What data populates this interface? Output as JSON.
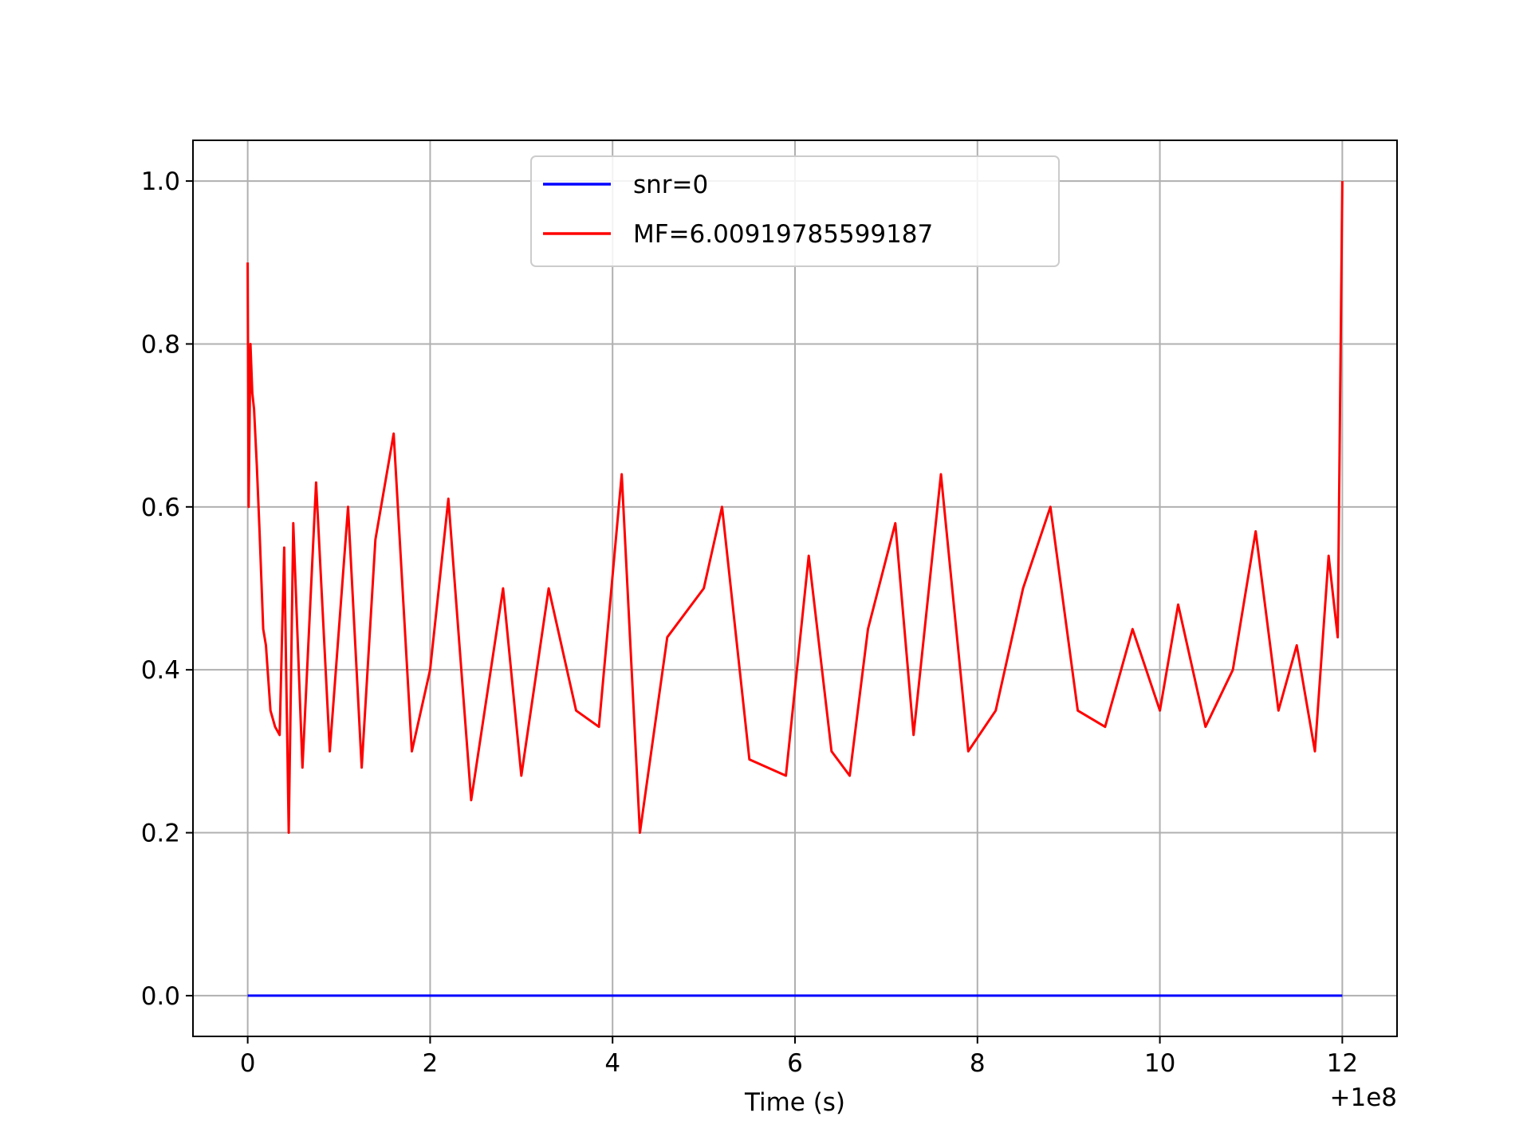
{
  "chart_data": {
    "type": "line",
    "title": "",
    "xlabel": "Time (s)",
    "ylabel": "",
    "x_offset_label": "+1e8",
    "xlim": [
      -0.6,
      12.6
    ],
    "ylim": [
      -0.05,
      1.05
    ],
    "xticks": [
      0,
      2,
      4,
      6,
      8,
      10,
      12
    ],
    "xtick_labels": [
      "0",
      "2",
      "4",
      "6",
      "8",
      "10",
      "12"
    ],
    "yticks": [
      0.0,
      0.2,
      0.4,
      0.6,
      0.8,
      1.0
    ],
    "ytick_labels": [
      "0.0",
      "0.2",
      "0.4",
      "0.6",
      "0.8",
      "1.0"
    ],
    "grid": true,
    "legend_position": "upper-center",
    "series": [
      {
        "name": "snr=0",
        "color": "#0000ff",
        "x": [
          0,
          12
        ],
        "y": [
          0,
          0
        ]
      },
      {
        "name": "MF=6.00919785599187",
        "color": "#ff0000",
        "x": [
          0,
          0.01,
          0.03,
          0.05,
          0.07,
          0.1,
          0.13,
          0.17,
          0.2,
          0.25,
          0.3,
          0.35,
          0.4,
          0.45,
          0.5,
          0.6,
          0.75,
          0.9,
          1.1,
          1.25,
          1.4,
          1.6,
          1.8,
          2.0,
          2.2,
          2.45,
          2.8,
          3.0,
          3.3,
          3.6,
          3.85,
          4.1,
          4.3,
          4.6,
          5.0,
          5.2,
          5.5,
          5.9,
          6.15,
          6.4,
          6.6,
          6.8,
          7.1,
          7.3,
          7.6,
          7.9,
          8.2,
          8.5,
          8.8,
          9.1,
          9.4,
          9.7,
          10.0,
          10.2,
          10.5,
          10.8,
          11.05,
          11.3,
          11.5,
          11.7,
          11.85,
          11.95,
          12.0
        ],
        "y": [
          0.9,
          0.6,
          0.8,
          0.74,
          0.72,
          0.65,
          0.57,
          0.45,
          0.43,
          0.35,
          0.33,
          0.32,
          0.55,
          0.2,
          0.58,
          0.28,
          0.63,
          0.3,
          0.6,
          0.28,
          0.56,
          0.69,
          0.3,
          0.4,
          0.61,
          0.24,
          0.5,
          0.27,
          0.5,
          0.35,
          0.33,
          0.64,
          0.2,
          0.44,
          0.5,
          0.6,
          0.29,
          0.27,
          0.54,
          0.3,
          0.27,
          0.45,
          0.58,
          0.32,
          0.64,
          0.3,
          0.35,
          0.5,
          0.6,
          0.35,
          0.33,
          0.45,
          0.35,
          0.48,
          0.33,
          0.4,
          0.57,
          0.35,
          0.43,
          0.3,
          0.54,
          0.44,
          1.0
        ]
      }
    ]
  }
}
